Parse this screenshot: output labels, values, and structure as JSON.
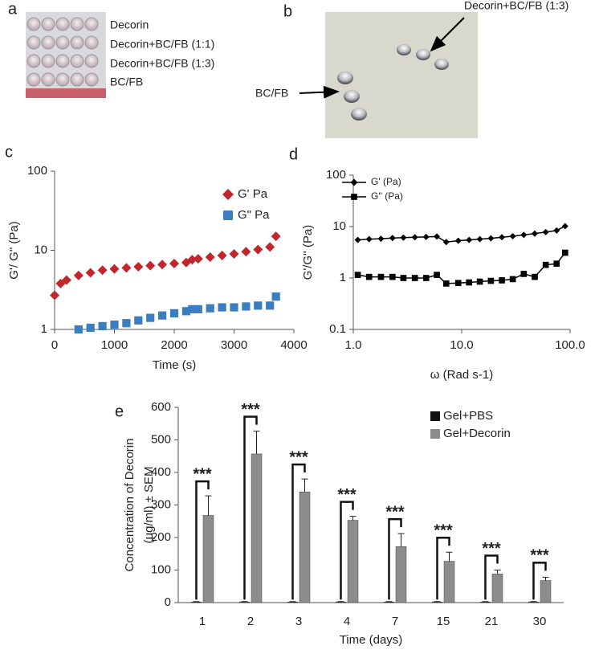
{
  "panel_labels": [
    "a",
    "b",
    "c",
    "d",
    "e"
  ],
  "photo_a": {
    "labels": [
      "Decorin",
      "Decorin+BC/FB (1:1)",
      "Decorin+BC/FB (1:3)",
      "BC/FB"
    ]
  },
  "photo_b": {
    "labels": [
      "Decorin+BC/FB (1:3)",
      "BC/FB"
    ]
  },
  "chart_data": [
    {
      "type": "scatter",
      "xlabel": "Time (s)",
      "ylabel": "G'/ G\" (Pa)",
      "log_y": true,
      "xlim": [
        0,
        4000
      ],
      "xticks": [
        0,
        1000,
        2000,
        3000,
        4000
      ],
      "ylim": [
        1,
        100
      ],
      "yticks": [
        1,
        10,
        100
      ],
      "legend": "top-right",
      "series": [
        {
          "name": "G' Pa",
          "color": "#c0272d",
          "marker": "diamond",
          "x": [
            0,
            100,
            200,
            400,
            600,
            800,
            1000,
            1200,
            1400,
            1600,
            1800,
            2000,
            2200,
            2300,
            2400,
            2600,
            2800,
            3000,
            3200,
            3400,
            3600,
            3700
          ],
          "values": [
            2.7,
            3.8,
            4.2,
            4.8,
            5.2,
            5.6,
            5.8,
            6.0,
            6.2,
            6.4,
            6.6,
            6.8,
            7.0,
            7.6,
            7.8,
            8.2,
            8.6,
            9.0,
            9.6,
            10.2,
            11,
            15
          ]
        },
        {
          "name": "G\" Pa",
          "color": "#3a7dc0",
          "marker": "square",
          "x": [
            400,
            600,
            800,
            1000,
            1200,
            1400,
            1600,
            1800,
            2000,
            2200,
            2300,
            2400,
            2600,
            2800,
            3000,
            3200,
            3400,
            3600,
            3700
          ],
          "values": [
            1.0,
            1.05,
            1.1,
            1.15,
            1.2,
            1.3,
            1.4,
            1.5,
            1.6,
            1.7,
            1.8,
            1.8,
            1.85,
            1.9,
            1.9,
            1.95,
            2.0,
            2.0,
            2.6
          ]
        }
      ]
    },
    {
      "type": "line",
      "xlabel": "ω (Rad s-1)",
      "ylabel": "G'/G'' (Pa)",
      "log_x": true,
      "log_y": true,
      "xlim": [
        1,
        100
      ],
      "xticks": [
        {
          "value": 1,
          "label": "1.0"
        },
        {
          "value": 10,
          "label": "10.0"
        },
        {
          "value": 100,
          "label": "100.0"
        }
      ],
      "ylim": [
        0.1,
        100
      ],
      "yticks": [
        0.1,
        1,
        10,
        100
      ],
      "legend": "top-left",
      "x": [
        1.1,
        1.4,
        1.8,
        2.3,
        2.9,
        3.7,
        4.7,
        5.9,
        7.2,
        9.3,
        11.7,
        14.7,
        18.6,
        23.5,
        29.6,
        37.4,
        47.2,
        59.6,
        75.2,
        90
      ],
      "series": [
        {
          "name": "G' (Pa)",
          "color": "#000000",
          "marker": "diamond",
          "values": [
            5.5,
            5.7,
            5.8,
            6.0,
            6.1,
            6.2,
            6.3,
            6.4,
            5.0,
            5.3,
            5.5,
            5.7,
            5.9,
            6.2,
            6.5,
            6.9,
            7.3,
            7.8,
            8.4,
            10.2
          ]
        },
        {
          "name": "G'' (Pa)",
          "color": "#000000",
          "marker": "square",
          "values": [
            1.15,
            1.05,
            1.05,
            1.05,
            1.0,
            1.0,
            1.0,
            1.15,
            0.78,
            0.8,
            0.82,
            0.85,
            0.88,
            0.9,
            0.95,
            1.2,
            1.05,
            1.8,
            1.9,
            3.1
          ]
        }
      ]
    },
    {
      "type": "bar",
      "xlabel": "Time (days)",
      "ylabel": [
        "Concentration of Decorin",
        "(μg/ml) ± SEM"
      ],
      "categories": [
        "1",
        "2",
        "3",
        "4",
        "7",
        "15",
        "21",
        "30"
      ],
      "ylim": [
        0,
        600
      ],
      "yticks": [
        0,
        100,
        200,
        300,
        400,
        500,
        600
      ],
      "legend": "top-right",
      "annotations": [
        "***",
        "***",
        "***",
        "***",
        "***",
        "***",
        "***",
        "***"
      ],
      "series": [
        {
          "name": "Gel+PBS",
          "color": "#111111",
          "values": [
            2,
            2,
            2,
            2,
            2,
            2,
            2,
            2
          ],
          "errors": [
            1,
            1,
            1,
            1,
            1,
            1,
            1,
            1
          ]
        },
        {
          "name": "Gel+Decorin",
          "color": "#8c8c8c",
          "values": [
            268,
            457,
            340,
            253,
            172,
            127,
            88,
            68
          ],
          "errors": [
            60,
            70,
            40,
            12,
            40,
            28,
            12,
            10
          ]
        }
      ]
    }
  ]
}
